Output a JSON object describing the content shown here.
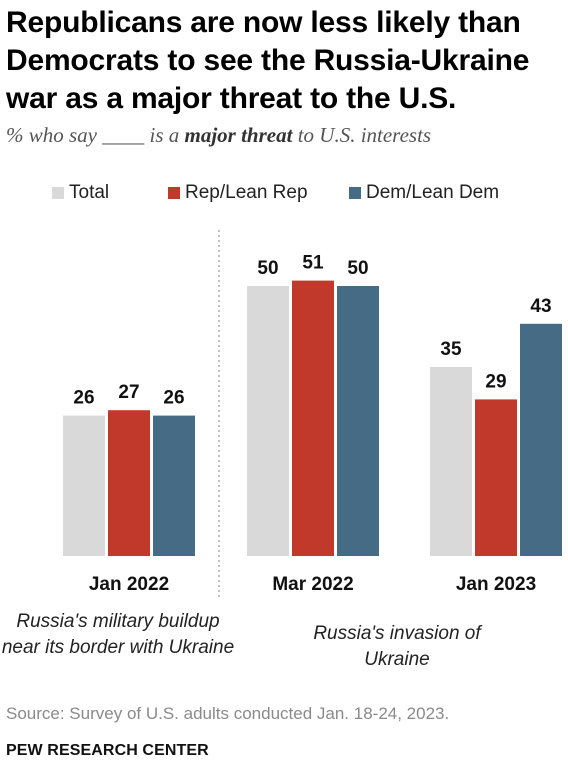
{
  "title": "Republicans are now less likely than Democrats to see the Russia-Ukraine war as a major threat to the U.S.",
  "subtitle": {
    "prefix": "% who say ____ is a",
    "emphasis": "major threat",
    "suffix": "to U.S. interests"
  },
  "colors": {
    "total": "#d9d9d9",
    "rep": "#c1392b",
    "dem": "#456b85"
  },
  "chart_data": {
    "type": "bar",
    "categories": [
      "Jan 2022",
      "Mar 2022",
      "Jan 2023"
    ],
    "series": [
      {
        "name": "Total",
        "values": [
          26,
          50,
          35
        ]
      },
      {
        "name": "Rep/Lean Rep",
        "values": [
          27,
          51,
          29
        ]
      },
      {
        "name": "Dem/Lean Dem",
        "values": [
          26,
          50,
          43
        ]
      }
    ],
    "ylim": [
      0,
      60
    ],
    "legend_placement": "top",
    "grid": false,
    "period_labels": [
      "Russia's military buildup near its border with Ukraine",
      "Russia's invasion of Ukraine"
    ]
  },
  "source": "Source: Survey of U.S. adults conducted Jan. 18-24, 2023.",
  "organization": "PEW RESEARCH CENTER"
}
